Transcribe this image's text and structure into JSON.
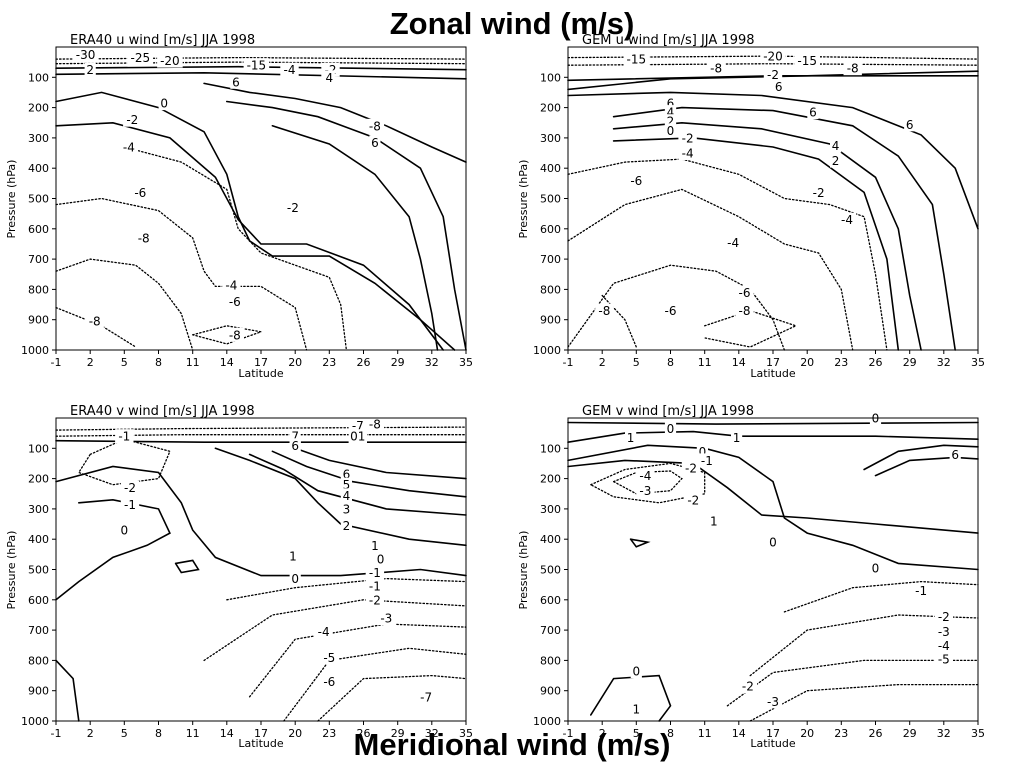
{
  "titles": {
    "top": "Zonal wind (m/s)",
    "bottom": "Meridional wind (m/s)"
  },
  "axes": {
    "xlabel": "Latitude",
    "ylabel": "Pressure (hPa)",
    "xticks": [
      "-1",
      "2",
      "5",
      "8",
      "11",
      "14",
      "17",
      "20",
      "23",
      "26",
      "29",
      "32",
      "35"
    ],
    "yticks": [
      "100",
      "200",
      "300",
      "400",
      "500",
      "600",
      "700",
      "800",
      "900",
      "1000"
    ]
  },
  "chart_data": [
    {
      "type": "contour",
      "title": "ERA40 u wind [m/s] JJA 1998",
      "xlabel": "Latitude",
      "ylabel": "Pressure (hPa)",
      "xlim": [
        -1,
        35
      ],
      "ylim": [
        1000,
        0
      ],
      "contour_labels": [
        {
          "text": "-30",
          "x": 1.6,
          "p": 25,
          "neg": true
        },
        {
          "text": "-25",
          "x": 6.4,
          "p": 35,
          "neg": true
        },
        {
          "text": "-20",
          "x": 9.0,
          "p": 45,
          "neg": true
        },
        {
          "text": "-15",
          "x": 16.6,
          "p": 60,
          "neg": true
        },
        {
          "text": "-4",
          "x": 19.5,
          "p": 75,
          "neg": true
        },
        {
          "text": "-2",
          "x": 23.1,
          "p": 75,
          "neg": true
        },
        {
          "text": "2",
          "x": 2.0,
          "p": 75,
          "neg": false
        },
        {
          "text": "4",
          "x": 23.0,
          "p": 100,
          "neg": false
        },
        {
          "text": "6",
          "x": 14.8,
          "p": 115,
          "neg": false
        },
        {
          "text": "0",
          "x": 8.5,
          "p": 185,
          "neg": false
        },
        {
          "text": "-2",
          "x": 5.7,
          "p": 240,
          "neg": true
        },
        {
          "text": "-4",
          "x": 5.4,
          "p": 330,
          "neg": true
        },
        {
          "text": "-8",
          "x": 27.0,
          "p": 260,
          "neg": true
        },
        {
          "text": "6",
          "x": 27.0,
          "p": 315,
          "neg": false
        },
        {
          "text": "-6",
          "x": 6.4,
          "p": 480,
          "neg": true
        },
        {
          "text": "-2",
          "x": 19.8,
          "p": 530,
          "neg": true
        },
        {
          "text": "-8",
          "x": 6.7,
          "p": 630,
          "neg": true
        },
        {
          "text": "-4",
          "x": 14.4,
          "p": 785,
          "neg": true
        },
        {
          "text": "-6",
          "x": 14.7,
          "p": 840,
          "neg": true
        },
        {
          "text": "-8",
          "x": 2.4,
          "p": 905,
          "neg": true
        },
        {
          "text": "-8",
          "x": 14.7,
          "p": 950,
          "neg": true
        }
      ]
    },
    {
      "type": "contour",
      "title": "GEM u wind [m/s] JJA 1998",
      "xlabel": "Latitude",
      "ylabel": "Pressure (hPa)",
      "xlim": [
        -1,
        35
      ],
      "ylim": [
        1000,
        0
      ],
      "contour_labels": [
        {
          "text": "-20",
          "x": 17.0,
          "p": 30,
          "neg": true
        },
        {
          "text": "-15",
          "x": 5.0,
          "p": 40,
          "neg": true
        },
        {
          "text": "-15",
          "x": 20.0,
          "p": 45,
          "neg": true
        },
        {
          "text": "-8",
          "x": 12.0,
          "p": 70,
          "neg": true
        },
        {
          "text": "-8",
          "x": 24.0,
          "p": 70,
          "neg": true
        },
        {
          "text": "-2",
          "x": 17.0,
          "p": 90,
          "neg": true
        },
        {
          "text": "6",
          "x": 17.5,
          "p": 130,
          "neg": false
        },
        {
          "text": "6",
          "x": 8.0,
          "p": 185,
          "neg": false
        },
        {
          "text": "4",
          "x": 8.0,
          "p": 215,
          "neg": false
        },
        {
          "text": "2",
          "x": 8.0,
          "p": 245,
          "neg": false
        },
        {
          "text": "6",
          "x": 20.5,
          "p": 215,
          "neg": false
        },
        {
          "text": "0",
          "x": 8.0,
          "p": 275,
          "neg": false
        },
        {
          "text": "-2",
          "x": 9.5,
          "p": 300,
          "neg": true
        },
        {
          "text": "6",
          "x": 29.0,
          "p": 255,
          "neg": false
        },
        {
          "text": "4",
          "x": 22.5,
          "p": 325,
          "neg": false
        },
        {
          "text": "2",
          "x": 22.5,
          "p": 375,
          "neg": false
        },
        {
          "text": "-4",
          "x": 9.5,
          "p": 350,
          "neg": true
        },
        {
          "text": "-6",
          "x": 5.0,
          "p": 440,
          "neg": true
        },
        {
          "text": "-2",
          "x": 21.0,
          "p": 480,
          "neg": true
        },
        {
          "text": "-4",
          "x": 23.5,
          "p": 570,
          "neg": true
        },
        {
          "text": "-4",
          "x": 13.5,
          "p": 645,
          "neg": true
        },
        {
          "text": "-6",
          "x": 14.5,
          "p": 810,
          "neg": true
        },
        {
          "text": "-8",
          "x": 2.2,
          "p": 870,
          "neg": true
        },
        {
          "text": "-6",
          "x": 8.0,
          "p": 870,
          "neg": true
        },
        {
          "text": "-8",
          "x": 14.5,
          "p": 870,
          "neg": true
        }
      ]
    },
    {
      "type": "contour",
      "title": "ERA40 v wind [m/s] JJA 1998",
      "xlabel": "Latitude",
      "ylabel": "Pressure (hPa)",
      "xlim": [
        -1,
        35
      ],
      "ylim": [
        1000,
        0
      ],
      "contour_labels": [
        {
          "text": "-7",
          "x": 25.5,
          "p": 25,
          "neg": true
        },
        {
          "text": "-8",
          "x": 27.0,
          "p": 20,
          "neg": true
        },
        {
          "text": "01",
          "x": 25.5,
          "p": 60,
          "neg": false
        },
        {
          "text": "7",
          "x": 20.0,
          "p": 60,
          "neg": false
        },
        {
          "text": "6",
          "x": 20.0,
          "p": 90,
          "neg": false
        },
        {
          "text": "-1",
          "x": 5.0,
          "p": 60,
          "neg": true
        },
        {
          "text": "-2",
          "x": 5.5,
          "p": 230,
          "neg": true
        },
        {
          "text": "-1",
          "x": 5.5,
          "p": 285,
          "neg": true
        },
        {
          "text": "0",
          "x": 5.0,
          "p": 370,
          "neg": false
        },
        {
          "text": "6",
          "x": 24.5,
          "p": 185,
          "neg": false
        },
        {
          "text": "5",
          "x": 24.5,
          "p": 220,
          "neg": false
        },
        {
          "text": "4",
          "x": 24.5,
          "p": 255,
          "neg": false
        },
        {
          "text": "3",
          "x": 24.5,
          "p": 300,
          "neg": false
        },
        {
          "text": "2",
          "x": 24.5,
          "p": 355,
          "neg": false
        },
        {
          "text": "1",
          "x": 27.0,
          "p": 420,
          "neg": false
        },
        {
          "text": "1",
          "x": 19.8,
          "p": 455,
          "neg": false
        },
        {
          "text": "0",
          "x": 27.5,
          "p": 465,
          "neg": false
        },
        {
          "text": "0",
          "x": 20.0,
          "p": 530,
          "neg": false
        },
        {
          "text": "-1",
          "x": 27.0,
          "p": 510,
          "neg": true
        },
        {
          "text": "-1",
          "x": 27.0,
          "p": 555,
          "neg": true
        },
        {
          "text": "-2",
          "x": 27.0,
          "p": 600,
          "neg": true
        },
        {
          "text": "-3",
          "x": 28.0,
          "p": 660,
          "neg": true
        },
        {
          "text": "-4",
          "x": 22.5,
          "p": 705,
          "neg": true
        },
        {
          "text": "-5",
          "x": 23.0,
          "p": 790,
          "neg": true
        },
        {
          "text": "-6",
          "x": 23.0,
          "p": 870,
          "neg": true
        },
        {
          "text": "-7",
          "x": 31.5,
          "p": 920,
          "neg": true
        }
      ]
    },
    {
      "type": "contour",
      "title": "GEM v wind [m/s] JJA 1998",
      "xlabel": "Latitude",
      "ylabel": "Pressure (hPa)",
      "xlim": [
        -1,
        35
      ],
      "ylim": [
        1000,
        0
      ],
      "contour_labels": [
        {
          "text": "0",
          "x": 26.0,
          "p": 0,
          "neg": false
        },
        {
          "text": "0",
          "x": 8.0,
          "p": 35,
          "neg": false
        },
        {
          "text": "1",
          "x": 4.5,
          "p": 65,
          "neg": false
        },
        {
          "text": "1",
          "x": 13.8,
          "p": 65,
          "neg": false
        },
        {
          "text": "0",
          "x": 10.8,
          "p": 110,
          "neg": false
        },
        {
          "text": "6",
          "x": 33.0,
          "p": 120,
          "neg": false
        },
        {
          "text": "-1",
          "x": 11.2,
          "p": 140,
          "neg": true
        },
        {
          "text": "-2",
          "x": 9.8,
          "p": 165,
          "neg": true
        },
        {
          "text": "-4",
          "x": 5.8,
          "p": 190,
          "neg": true
        },
        {
          "text": "-3",
          "x": 5.8,
          "p": 240,
          "neg": true
        },
        {
          "text": "-2",
          "x": 10.0,
          "p": 270,
          "neg": true
        },
        {
          "text": "1",
          "x": 11.8,
          "p": 340,
          "neg": false
        },
        {
          "text": "0",
          "x": 17.0,
          "p": 410,
          "neg": false
        },
        {
          "text": "0",
          "x": 26.0,
          "p": 495,
          "neg": false
        },
        {
          "text": "-1",
          "x": 30.0,
          "p": 570,
          "neg": true
        },
        {
          "text": "-2",
          "x": 32.0,
          "p": 655,
          "neg": true
        },
        {
          "text": "-3",
          "x": 32.0,
          "p": 705,
          "neg": true
        },
        {
          "text": "-4",
          "x": 32.0,
          "p": 750,
          "neg": true
        },
        {
          "text": "-5",
          "x": 32.0,
          "p": 795,
          "neg": true
        },
        {
          "text": "0",
          "x": 5.0,
          "p": 835,
          "neg": false
        },
        {
          "text": "-2",
          "x": 14.8,
          "p": 885,
          "neg": true
        },
        {
          "text": "-3",
          "x": 17.0,
          "p": 935,
          "neg": true
        },
        {
          "text": "1",
          "x": 5.0,
          "p": 960,
          "neg": false
        }
      ]
    }
  ]
}
